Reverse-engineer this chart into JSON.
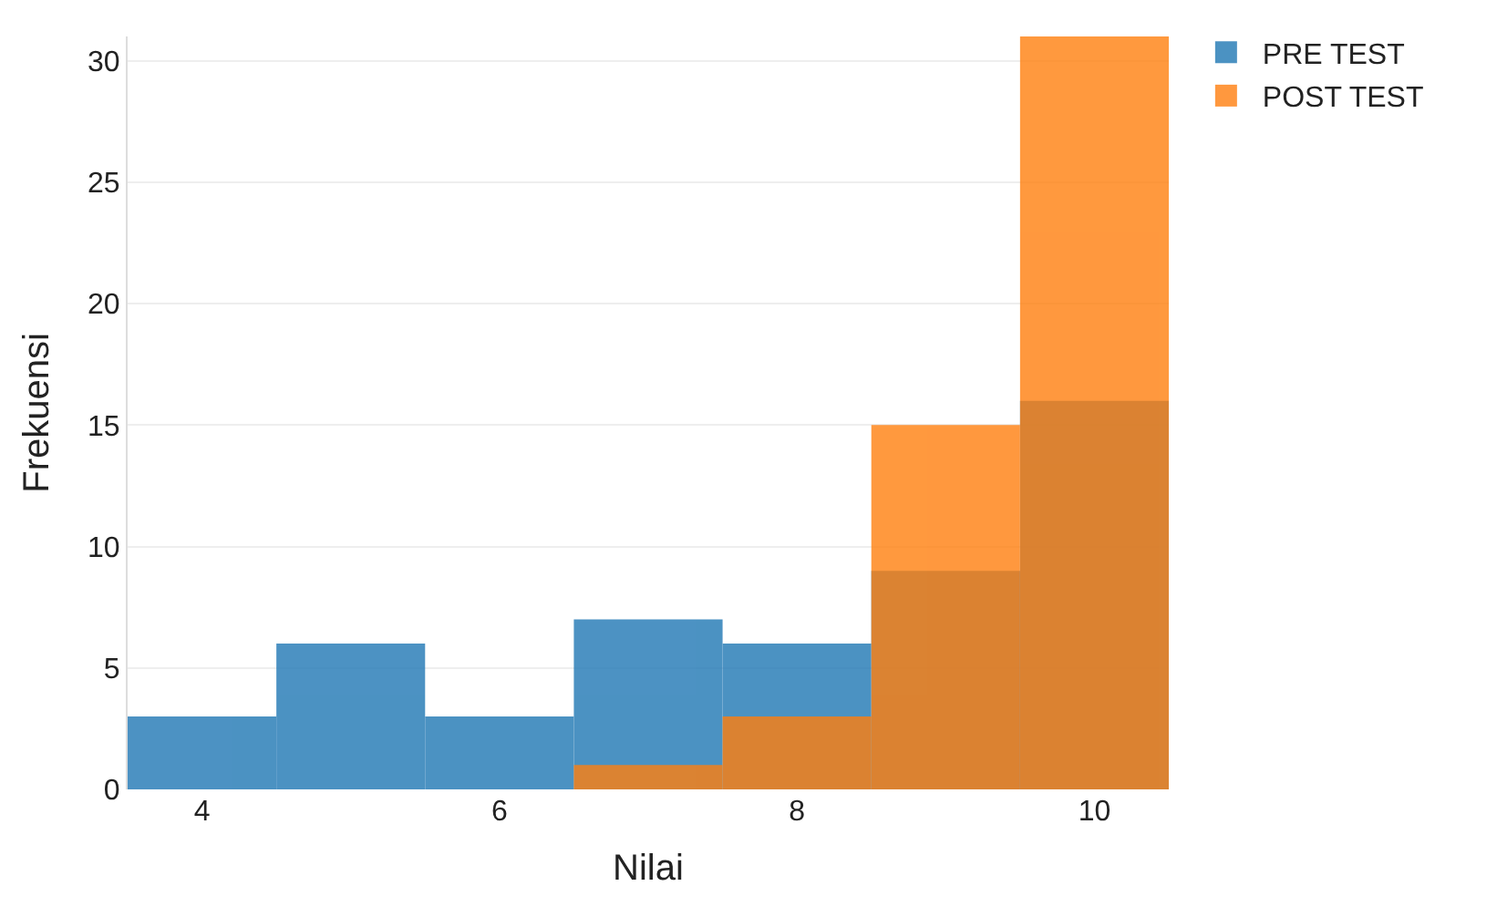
{
  "chart_data": {
    "type": "histogram",
    "xlabel": "Nilai",
    "ylabel": "Frekuensi",
    "bins": [
      3.5,
      4.5,
      5.5,
      6.5,
      7.5,
      8.5,
      9.5,
      10.5
    ],
    "series": [
      {
        "name": "PRE TEST",
        "color": "#1f77b4",
        "values": [
          3,
          6,
          3,
          7,
          6,
          9,
          16
        ]
      },
      {
        "name": "POST TEST",
        "color": "#ff7f0e",
        "values": [
          0,
          0,
          0,
          1,
          3,
          15,
          31
        ]
      }
    ],
    "xlim": [
      3.5,
      10.5
    ],
    "xticks": [
      4,
      6,
      8,
      10
    ],
    "ylim": [
      0,
      31
    ],
    "yticks": [
      0,
      5,
      10,
      15,
      20,
      25,
      30
    ],
    "grid": "y",
    "legend": "top right"
  }
}
